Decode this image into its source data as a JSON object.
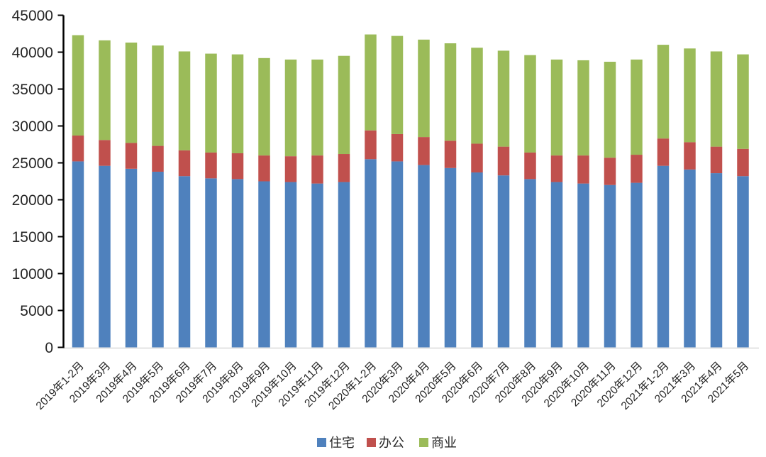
{
  "chart_data": {
    "type": "bar",
    "stacked": true,
    "title": "",
    "xlabel": "",
    "ylabel": "",
    "ylim": [
      0,
      45000
    ],
    "ytick_step": 5000,
    "yticks": [
      0,
      5000,
      10000,
      15000,
      20000,
      25000,
      30000,
      35000,
      40000,
      45000
    ],
    "grid": false,
    "legend_position": "bottom",
    "categories": [
      "2019年1-2月",
      "2019年3月",
      "2019年4月",
      "2019年5月",
      "2019年6月",
      "2019年7月",
      "2019年8月",
      "2019年9月",
      "2019年10月",
      "2019年11月",
      "2019年12月",
      "2020年1-2月",
      "2020年3月",
      "2020年4月",
      "2020年5月",
      "2020年6月",
      "2020年7月",
      "2020年8月",
      "2020年9月",
      "2020年10月",
      "2020年11月",
      "2020年12月",
      "2021年1-2月",
      "2021年3月",
      "2021年4月",
      "2021年5月"
    ],
    "series": [
      {
        "name": "住宅",
        "color": "#4F81BD",
        "values": [
          25200,
          24600,
          24200,
          23800,
          23200,
          22900,
          22800,
          22500,
          22400,
          22200,
          22400,
          25500,
          25200,
          24700,
          24300,
          23700,
          23300,
          22800,
          22400,
          22200,
          22000,
          22300,
          24600,
          24100,
          23600,
          23200
        ]
      },
      {
        "name": "办公",
        "color": "#C0504D",
        "values": [
          3500,
          3500,
          3500,
          3500,
          3500,
          3500,
          3500,
          3500,
          3500,
          3800,
          3800,
          3900,
          3700,
          3800,
          3700,
          3900,
          3900,
          3600,
          3600,
          3800,
          3700,
          3800,
          3700,
          3700,
          3600,
          3700
        ]
      },
      {
        "name": "商业",
        "color": "#9BBB59",
        "values": [
          13600,
          13500,
          13600,
          13600,
          13400,
          13400,
          13400,
          13200,
          13100,
          13000,
          13300,
          13000,
          13300,
          13200,
          13200,
          13000,
          13000,
          13200,
          13000,
          12900,
          13000,
          12900,
          12700,
          12700,
          12900,
          12800
        ]
      }
    ],
    "colors": {
      "axis_line": "#000000",
      "baseline": "#D9D9D9",
      "tick_text": "#262626",
      "background": "#FFFFFF"
    }
  }
}
